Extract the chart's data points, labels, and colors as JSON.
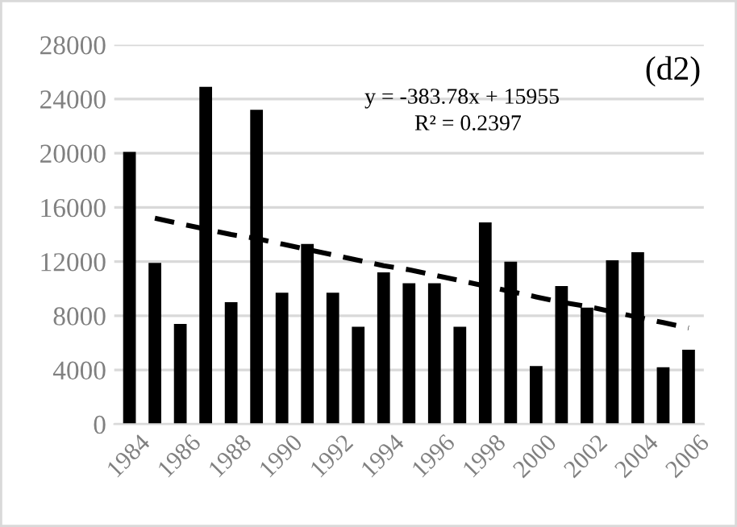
{
  "chart_data": {
    "type": "bar",
    "categories": [
      "1984",
      null,
      "1986",
      null,
      "1988",
      null,
      "1990",
      null,
      "1992",
      null,
      "1994",
      null,
      "1996",
      null,
      "1998",
      null,
      "2000",
      null,
      "2002",
      null,
      "2004",
      null,
      "2006"
    ],
    "series": [
      {
        "color": "#000000",
        "values": [
          20100,
          11900,
          7400,
          24900,
          9000,
          23200,
          9700,
          13300,
          9700,
          7200,
          11200,
          10400,
          10400,
          7200,
          14900,
          12000,
          4300,
          10200,
          8600,
          12100,
          12700,
          4200,
          5500
        ]
      },
      {
        "type": "line",
        "color": "#000000",
        "line_style": "dashed",
        "values": [
          null,
          15200,
          14800,
          14400,
          14000,
          13700,
          13300,
          12900,
          12500,
          12100,
          11700,
          11400,
          11000,
          10600,
          10200,
          9800,
          9400,
          9000,
          8700,
          8300,
          7900,
          7500,
          7100
        ]
      }
    ],
    "ylim": [
      0,
      28000
    ],
    "yticks": [
      0,
      4000,
      8000,
      12000,
      16000,
      20000,
      24000,
      28000
    ],
    "grid": "y",
    "annotations": [
      "y = -383.78x + 15955",
      "R² = 0.2397",
      "(d2)"
    ]
  }
}
